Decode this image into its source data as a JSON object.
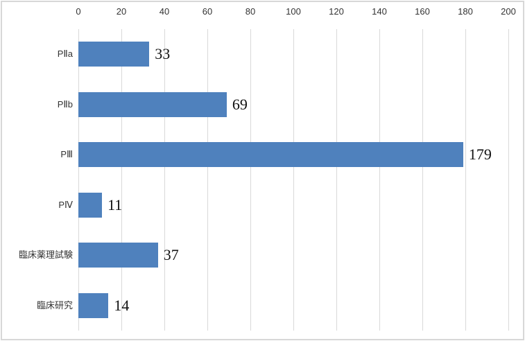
{
  "chart_data": {
    "type": "bar",
    "orientation": "horizontal",
    "title": "",
    "xlabel": "",
    "ylabel": "",
    "categories": [
      "PⅡa",
      "PⅡb",
      "PⅢ",
      "PⅣ",
      "臨床薬理試験",
      "臨床研究"
    ],
    "values": [
      33,
      69,
      179,
      11,
      37,
      14
    ],
    "value_labels": [
      "33",
      "69",
      "179",
      "11",
      "37",
      "14"
    ],
    "xlim": [
      0,
      200
    ],
    "x_ticks": [
      0,
      20,
      40,
      60,
      80,
      100,
      120,
      140,
      160,
      180,
      200
    ],
    "x_axis_position": "top",
    "grid": true,
    "legend": false,
    "colors": {
      "bar": "#4f81bd",
      "gridline": "#d9d9d9",
      "frame_border": "#d7d7d7",
      "axis_text": "#333333",
      "value_text": "#111111",
      "background": "#ffffff"
    }
  }
}
